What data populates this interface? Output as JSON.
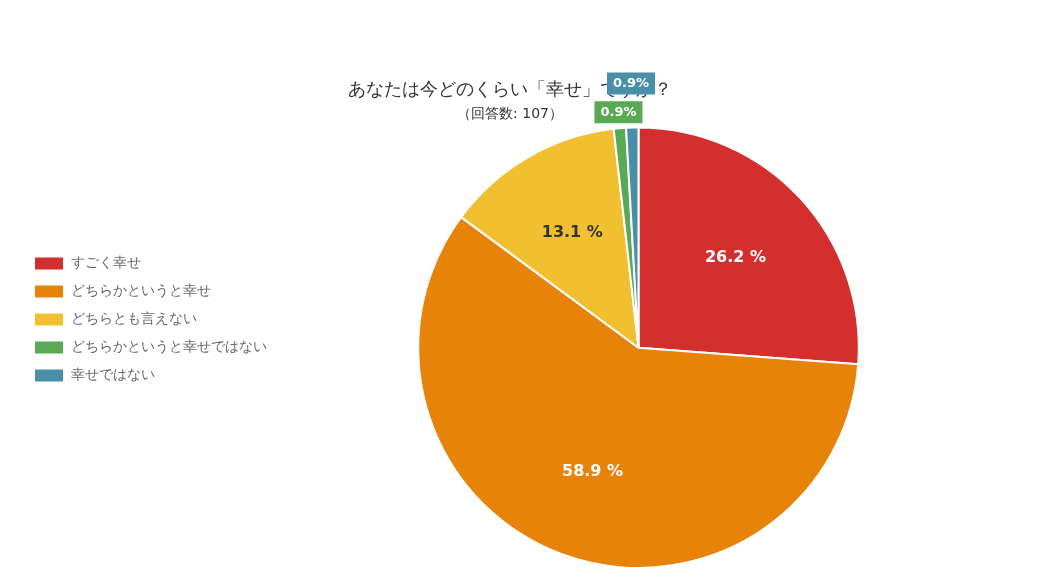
{
  "chart_data": {
    "type": "pie",
    "title": "あなたは今どのくらい「幸せ」ですか？",
    "subtitle": "（回答数: 107）",
    "categories": [
      "すごく幸せ",
      "どちらかというと幸せ",
      "どちらとも言えない",
      "どちらかというと幸せではない",
      "幸せではない"
    ],
    "values": [
      26.2,
      58.9,
      13.1,
      0.9,
      0.9
    ],
    "value_labels": [
      "26.2 %",
      "58.9 %",
      "13.1 %",
      "0.9%",
      "0.9%"
    ],
    "colors": [
      "#d32f2f",
      "#e8830a",
      "#f0c030",
      "#5aaa55",
      "#4a8fa8"
    ],
    "data_labels": true,
    "legend": "left"
  }
}
